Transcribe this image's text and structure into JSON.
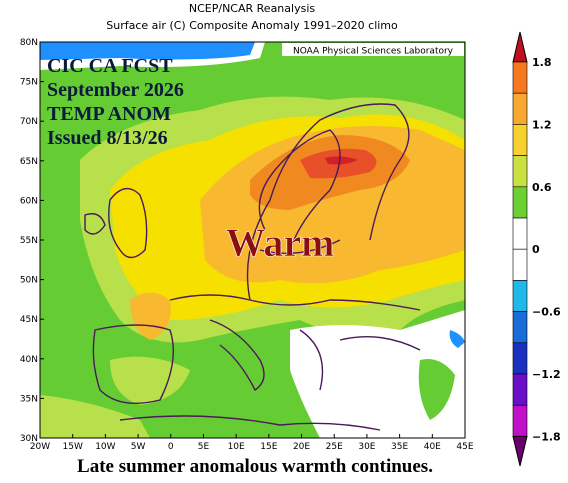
{
  "header": {
    "line1": "NCEP/NCAR Reanalysis",
    "line2": "Surface air (C) Composite Anomaly 1991–2020 climo"
  },
  "credit": "NOAA Physical Sciences Laboratory",
  "overlay": {
    "lines": [
      "CIC CA FCST",
      "September 2026",
      "TEMP ANOM",
      "Issued 8/13/26"
    ],
    "label": "Warm"
  },
  "lat_labels": [
    "80N",
    "75N",
    "70N",
    "65N",
    "60N",
    "55N",
    "50N",
    "45N",
    "40N",
    "35N",
    "30N"
  ],
  "lon_labels": [
    "20W",
    "15W",
    "10W",
    "5W",
    "0",
    "5E",
    "10E",
    "15E",
    "20E",
    "25E",
    "30E",
    "35E",
    "40E",
    "45E"
  ],
  "colorbar_labels": [
    "1.8",
    "1.2",
    "0.6",
    "0",
    "−0.6",
    "−1.2",
    "−1.8"
  ],
  "caption": "Late summer anomalous warmth continues."
}
